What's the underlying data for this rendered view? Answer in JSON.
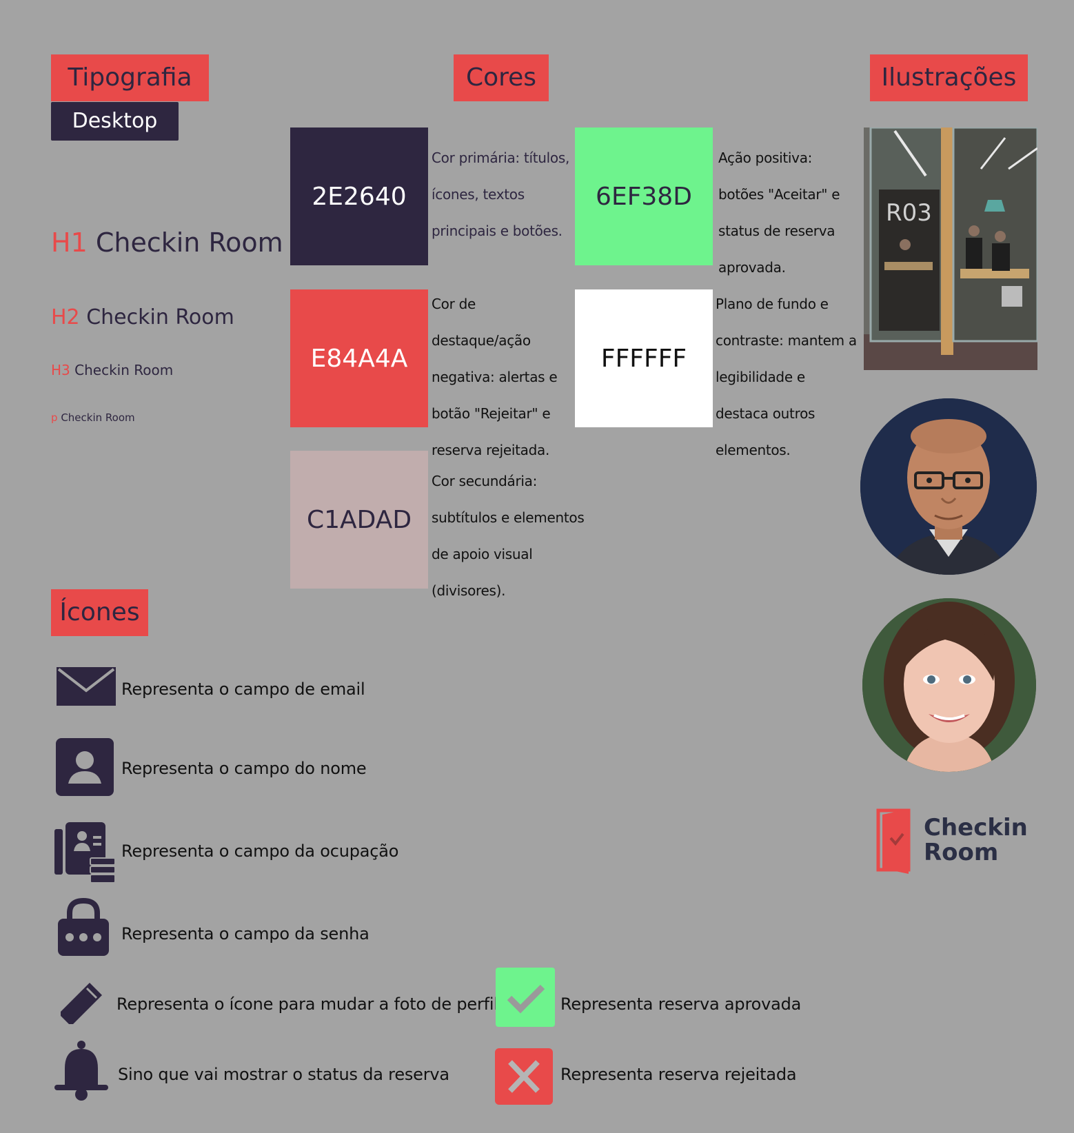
{
  "sections": {
    "typography": "Tipografia",
    "colors": "Cores",
    "illustrations": "Ilustrações",
    "icons": "Ícones"
  },
  "typography": {
    "platform_tag": "Desktop",
    "h1": {
      "tag": "H1",
      "text": "Checkin Room"
    },
    "h2": {
      "tag": "H2",
      "text": "Checkin Room"
    },
    "h3": {
      "tag": "H3",
      "text": "Checkin Room"
    },
    "p": {
      "tag": "p",
      "text": "Checkin Room"
    }
  },
  "colors": [
    {
      "hex": "2E2640",
      "color": "#2e2640",
      "text_color": "#ffffff",
      "desc": "Cor primária: títulos, ícones, textos principais e botões.",
      "desc_color": "#2e2640"
    },
    {
      "hex": "6EF38D",
      "color": "#6ef38d",
      "text_color": "#2e2640",
      "desc": "Ação positiva: botões \"Aceitar\" e status de reserva aprovada.",
      "desc_color": "#111111"
    },
    {
      "hex": "E84A4A",
      "color": "#e84a4a",
      "text_color": "#ffffff",
      "desc": "Cor de destaque/ação negativa: alertas e botão \"Rejeitar\" e reserva rejeitada.",
      "desc_color": "#111111"
    },
    {
      "hex": "FFFFFF",
      "color": "#ffffff",
      "text_color": "#111111",
      "desc": "Plano de fundo e contraste: mantem a legibilidade e destaca outros elementos.",
      "desc_color": "#111111"
    },
    {
      "hex": "C1ADAD",
      "color": "#c1adad",
      "text_color": "#2e2640",
      "desc": "Cor secundária: subtítulos e elementos de apoio visual (divisores).",
      "desc_color": "#111111"
    }
  ],
  "icons": [
    {
      "icon": "envelope-icon",
      "label": "Representa o campo de email"
    },
    {
      "icon": "user-icon",
      "label": "Representa o campo do nome"
    },
    {
      "icon": "id-card-icon",
      "label": "Representa o campo da ocupação"
    },
    {
      "icon": "lock-icon",
      "label": "Representa o campo da senha"
    },
    {
      "icon": "pencil-icon",
      "label": "Representa o ícone para mudar a foto de perfil"
    },
    {
      "icon": "bell-icon",
      "label": "Sino que vai mostrar o status da reserva"
    },
    {
      "icon": "check-icon",
      "label": "Representa reserva aprovada"
    },
    {
      "icon": "x-icon",
      "label": "Representa reserva rejeitada"
    }
  ],
  "illustrations": {
    "room_sign": "R03",
    "logo_line1": "Checkin",
    "logo_line2": "Room"
  }
}
